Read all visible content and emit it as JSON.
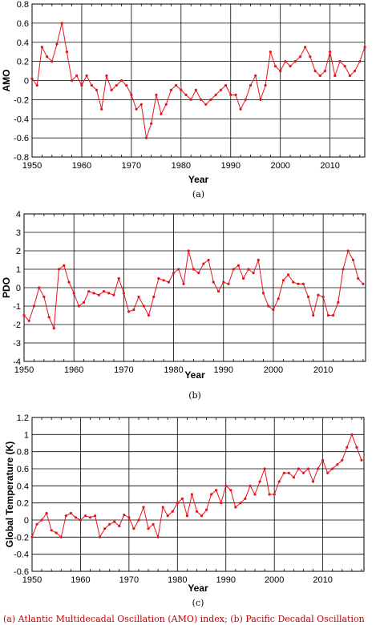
{
  "chart_data": [
    {
      "type": "line",
      "panel_label": "(a)",
      "xlabel": "Year",
      "ylabel": "AMO",
      "xlim": [
        1950,
        2017
      ],
      "ylim": [
        -0.8,
        0.8
      ],
      "xticks": [
        1950,
        1960,
        1970,
        1980,
        1990,
        2000,
        2010
      ],
      "yticks": [
        -0.8,
        -0.6,
        -0.4,
        -0.2,
        0,
        0.2,
        0.4,
        0.6,
        0.8
      ],
      "ytick_labels": [
        "-0.8",
        "-0.6",
        "-0.4",
        "-0.2",
        "0",
        "0.2",
        "0.4",
        "0.6",
        "0.8"
      ],
      "grid": true,
      "line_color": "#e8131b",
      "series": [
        {
          "x": [
            1950,
            1951,
            1952,
            1953,
            1954,
            1955,
            1956,
            1957,
            1958,
            1959,
            1960,
            1961,
            1962,
            1963,
            1964,
            1965,
            1966,
            1967,
            1968,
            1969,
            1970,
            1971,
            1972,
            1973,
            1974,
            1975,
            1976,
            1977,
            1978,
            1979,
            1980,
            1981,
            1982,
            1983,
            1984,
            1985,
            1986,
            1987,
            1988,
            1989,
            1990,
            1991,
            1992,
            1993,
            1994,
            1995,
            1996,
            1997,
            1998,
            1999,
            2000,
            2001,
            2002,
            2003,
            2004,
            2005,
            2006,
            2007,
            2008,
            2009,
            2010,
            2011,
            2012,
            2013,
            2014,
            2015,
            2016,
            2017
          ],
          "y": [
            0.02,
            -0.05,
            0.35,
            0.25,
            0.2,
            0.38,
            0.6,
            0.3,
            0.0,
            0.05,
            -0.05,
            0.05,
            -0.05,
            -0.1,
            -0.3,
            0.05,
            -0.1,
            -0.05,
            0.0,
            -0.05,
            -0.15,
            -0.3,
            -0.25,
            -0.6,
            -0.45,
            -0.15,
            -0.35,
            -0.25,
            -0.1,
            -0.05,
            -0.1,
            -0.15,
            -0.2,
            -0.1,
            -0.2,
            -0.25,
            -0.2,
            -0.15,
            -0.1,
            -0.05,
            -0.15,
            -0.15,
            -0.3,
            -0.2,
            -0.05,
            0.05,
            -0.2,
            -0.05,
            0.3,
            0.15,
            0.1,
            0.2,
            0.15,
            0.2,
            0.25,
            0.35,
            0.25,
            0.1,
            0.05,
            0.1,
            0.3,
            0.05,
            0.2,
            0.15,
            0.05,
            0.1,
            0.2,
            0.35
          ]
        }
      ]
    },
    {
      "type": "line",
      "panel_label": "(b)",
      "xlabel": "Year",
      "ylabel": "PDO",
      "xlim": [
        1950,
        2018.5
      ],
      "ylim": [
        -4,
        4
      ],
      "xticks": [
        1950,
        1960,
        1970,
        1980,
        1990,
        2000,
        2010
      ],
      "yticks": [
        -4,
        -3,
        -2,
        -1,
        0,
        1,
        2,
        3,
        4
      ],
      "ytick_labels": [
        "-4",
        "-3",
        "-2",
        "-1",
        "0",
        "1",
        "2",
        "3",
        "4"
      ],
      "grid": true,
      "line_color": "#e8131b",
      "series": [
        {
          "x": [
            1950,
            1951,
            1952,
            1953,
            1954,
            1955,
            1956,
            1957,
            1958,
            1959,
            1960,
            1961,
            1962,
            1963,
            1964,
            1965,
            1966,
            1967,
            1968,
            1969,
            1970,
            1971,
            1972,
            1973,
            1974,
            1975,
            1976,
            1977,
            1978,
            1979,
            1980,
            1981,
            1982,
            1983,
            1984,
            1985,
            1986,
            1987,
            1988,
            1989,
            1990,
            1991,
            1992,
            1993,
            1994,
            1995,
            1996,
            1997,
            1998,
            1999,
            2000,
            2001,
            2002,
            2003,
            2004,
            2005,
            2006,
            2007,
            2008,
            2009,
            2010,
            2011,
            2012,
            2013,
            2014,
            2015,
            2016,
            2017,
            2018
          ],
          "y": [
            -1.5,
            -1.8,
            -1.0,
            0.0,
            -0.5,
            -1.6,
            -2.2,
            1.0,
            1.2,
            0.3,
            -0.3,
            -1.0,
            -0.8,
            -0.2,
            -0.3,
            -0.4,
            -0.2,
            -0.3,
            -0.4,
            0.5,
            -0.3,
            -1.3,
            -1.2,
            -0.5,
            -1.0,
            -1.5,
            -0.5,
            0.5,
            0.4,
            0.3,
            0.8,
            1.0,
            0.2,
            2.0,
            1.0,
            0.8,
            1.3,
            1.5,
            0.3,
            -0.2,
            0.3,
            0.2,
            1.0,
            1.2,
            0.5,
            1.0,
            0.8,
            1.5,
            -0.3,
            -1.0,
            -1.2,
            -0.6,
            0.4,
            0.7,
            0.3,
            0.2,
            0.2,
            -0.5,
            -1.5,
            -0.4,
            -0.5,
            -1.5,
            -1.5,
            -0.8,
            1.0,
            2.0,
            1.5,
            0.5,
            0.2
          ]
        }
      ]
    },
    {
      "type": "line",
      "panel_label": "(c)",
      "xlabel": "Year",
      "ylabel": "Global Temperature (K)",
      "xlim": [
        1950,
        2018.5
      ],
      "ylim": [
        -0.6,
        1.2
      ],
      "xticks": [
        1950,
        1960,
        1970,
        1980,
        1990,
        2000,
        2010
      ],
      "yticks": [
        -0.6,
        -0.4,
        -0.2,
        0,
        0.2,
        0.4,
        0.6,
        0.8,
        1,
        1.2
      ],
      "ytick_labels": [
        "-0.6",
        "-0.4",
        "-0.2",
        "0",
        "0.2",
        "0.4",
        "0.6",
        "0.8",
        "1",
        "1.2"
      ],
      "grid": true,
      "line_color": "#e8131b",
      "series": [
        {
          "x": [
            1950,
            1951,
            1952,
            1953,
            1954,
            1955,
            1956,
            1957,
            1958,
            1959,
            1960,
            1961,
            1962,
            1963,
            1964,
            1965,
            1966,
            1967,
            1968,
            1969,
            1970,
            1971,
            1972,
            1973,
            1974,
            1975,
            1976,
            1977,
            1978,
            1979,
            1980,
            1981,
            1982,
            1983,
            1984,
            1985,
            1986,
            1987,
            1988,
            1989,
            1990,
            1991,
            1992,
            1993,
            1994,
            1995,
            1996,
            1997,
            1998,
            1999,
            2000,
            2001,
            2002,
            2003,
            2004,
            2005,
            2006,
            2007,
            2008,
            2009,
            2010,
            2011,
            2012,
            2013,
            2014,
            2015,
            2016,
            2017,
            2018
          ],
          "y": [
            -0.2,
            -0.05,
            0.0,
            0.08,
            -0.12,
            -0.15,
            -0.2,
            0.05,
            0.08,
            0.03,
            0.0,
            0.05,
            0.03,
            0.05,
            -0.2,
            -0.1,
            -0.05,
            -0.02,
            -0.07,
            0.06,
            0.03,
            -0.1,
            0.0,
            0.15,
            -0.1,
            -0.05,
            -0.2,
            0.15,
            0.05,
            0.1,
            0.2,
            0.25,
            0.05,
            0.3,
            0.1,
            0.05,
            0.12,
            0.3,
            0.35,
            0.2,
            0.4,
            0.35,
            0.15,
            0.2,
            0.25,
            0.4,
            0.3,
            0.45,
            0.6,
            0.3,
            0.3,
            0.45,
            0.55,
            0.55,
            0.5,
            0.6,
            0.55,
            0.6,
            0.45,
            0.6,
            0.7,
            0.55,
            0.6,
            0.65,
            0.7,
            0.85,
            1.0,
            0.85,
            0.7
          ]
        }
      ]
    }
  ],
  "caption": "(a) Atlantic Multidecadal Oscillation (AMO) index; (b) Pacific Decadal Oscillation"
}
